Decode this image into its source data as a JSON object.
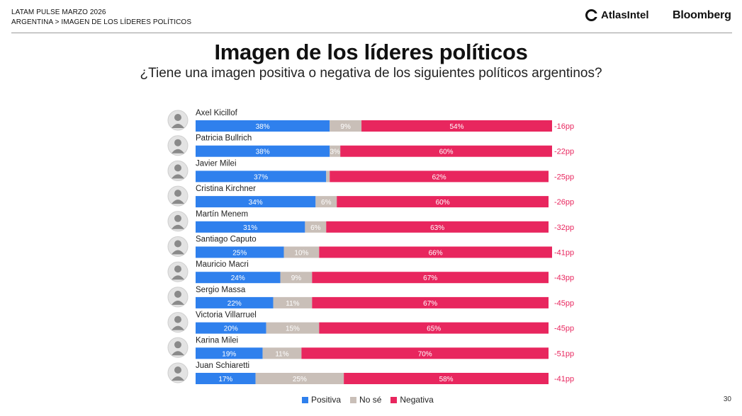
{
  "header": {
    "line1": "LATAM PULSE MARZO 2026",
    "line2": "ARGENTINA > IMAGEN DE LOS LÍDERES POLÍTICOS",
    "brand1": "AtlasIntel",
    "brand2": "Bloomberg"
  },
  "page_number": "30",
  "colors": {
    "positiva": "#2f80ed",
    "no_se": "#c9bfb8",
    "negativa": "#e8265e",
    "net": "#e8265e"
  },
  "chart_data": {
    "type": "bar",
    "stacked": true,
    "orientation": "horizontal",
    "title": "Imagen de los líderes políticos",
    "subtitle": "¿Tiene una imagen positiva o negativa de los siguientes políticos argentinos?",
    "categories": [
      "Axel Kicillof",
      "Patricia Bullrich",
      "Javier Milei",
      "Cristina Kirchner",
      "Martín Menem",
      "Santiago Caputo",
      "Mauricio Macri",
      "Sergio Massa",
      "Victoria Villarruel",
      "Karina Milei",
      "Juan Schiaretti"
    ],
    "series": [
      {
        "name": "Positiva",
        "values": [
          38,
          38,
          37,
          34,
          31,
          25,
          24,
          22,
          20,
          19,
          17
        ],
        "labels": [
          "38%",
          "38%",
          "37%",
          "34%",
          "31%",
          "25%",
          "24%",
          "22%",
          "20%",
          "19%",
          "17%"
        ]
      },
      {
        "name": "No sé",
        "values": [
          9,
          3,
          1,
          6,
          6,
          10,
          9,
          11,
          15,
          11,
          25
        ],
        "labels": [
          "9%",
          "3%",
          "",
          "6%",
          "6%",
          "10%",
          "9%",
          "11%",
          "15%",
          "11%",
          "25%"
        ]
      },
      {
        "name": "Negativa",
        "values": [
          54,
          60,
          62,
          60,
          63,
          66,
          67,
          67,
          65,
          70,
          58
        ],
        "labels": [
          "54%",
          "60%",
          "62%",
          "60%",
          "63%",
          "66%",
          "67%",
          "67%",
          "65%",
          "70%",
          "58%"
        ]
      }
    ],
    "net_labels": [
      "-16pp",
      "-22pp",
      "-25pp",
      "-26pp",
      "-32pp",
      "-41pp",
      "-43pp",
      "-45pp",
      "-45pp",
      "-51pp",
      "-41pp"
    ],
    "xlim": [
      0,
      100
    ],
    "legend_position": "bottom-center",
    "grid": false
  }
}
